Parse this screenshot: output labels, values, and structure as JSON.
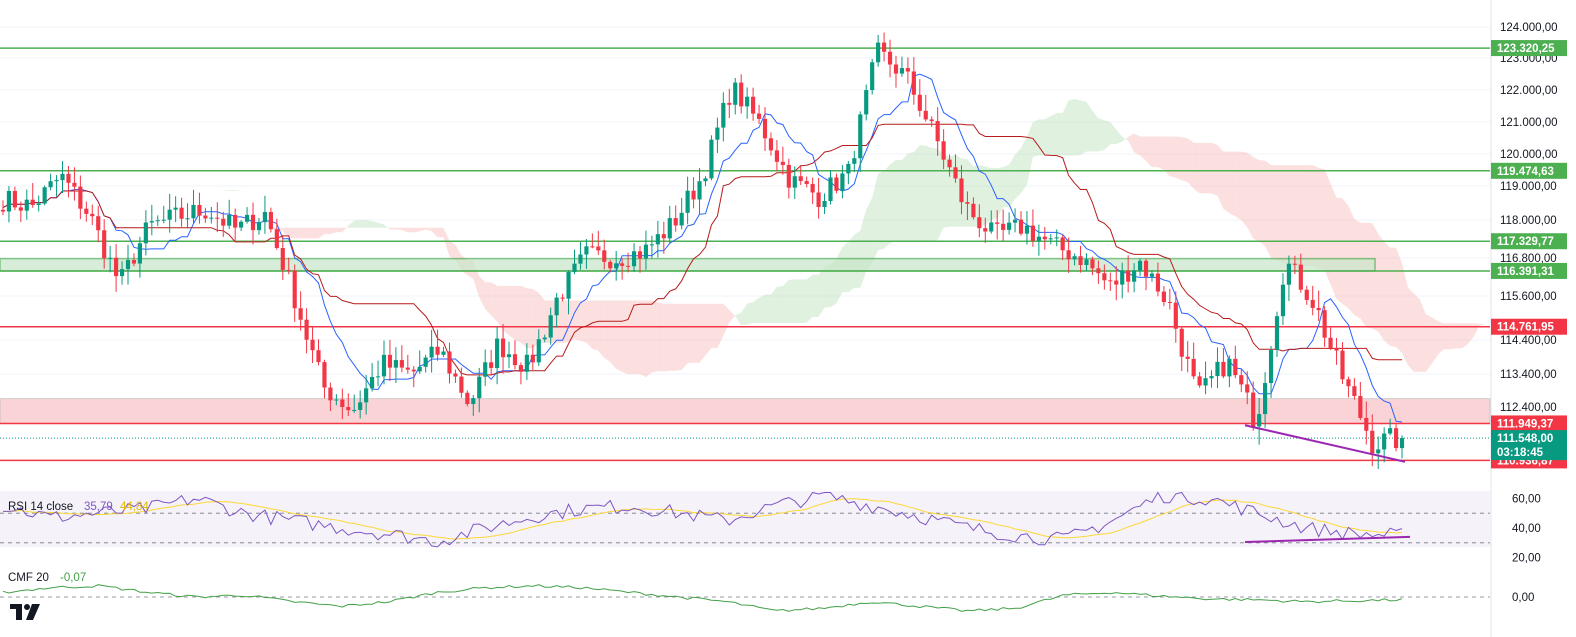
{
  "colors": {
    "up": "#089981",
    "down": "#f23645",
    "green_line": "#4caf50",
    "red_line": "#f23645",
    "tenkan": "#2962ff",
    "kijun": "#b71c1c",
    "cloud_bull": "#a5d6a7",
    "cloud_bear": "#f7a6a6",
    "rsi": "#7e57c2",
    "rsi_ma": "#fdd835",
    "cmf": "#43a047",
    "div": "#9c27b0"
  },
  "chart_data": [
    {
      "type": "candlestick",
      "title": "",
      "ylim": [
        110400,
        124600
      ],
      "y_ticks": [
        "124.000,00",
        "123.000,00",
        "122.000,00",
        "121.000,00",
        "120.000,00",
        "119.000,00",
        "118.000,00",
        "116.800,00",
        "115.600,00",
        "114.400,00",
        "113.400,00",
        "112.400,00"
      ],
      "y_tick_values": [
        124000,
        123000,
        122000,
        121000,
        120000,
        119000,
        118000,
        116800,
        115600,
        114400,
        113400,
        112400
      ],
      "levels": [
        {
          "label": "123.320,25",
          "value": 123320.25,
          "color": "green"
        },
        {
          "label": "119.474,63",
          "value": 119474.63,
          "color": "green"
        },
        {
          "label": "117.329,77",
          "value": 117329.77,
          "color": "green"
        },
        {
          "label": "116.391,31",
          "value": 116391.31,
          "color": "green"
        },
        {
          "label": "114.761,95",
          "value": 114761.95,
          "color": "red"
        },
        {
          "label": "111.949,37",
          "value": 111949.37,
          "color": "red"
        },
        {
          "label": "110.936,87",
          "value": 110936.87,
          "color": "red"
        }
      ],
      "last_price": {
        "label": "111.548,00",
        "value": 111548,
        "countdown": "03:18:45"
      },
      "zones": [
        {
          "type": "support",
          "from": 111949.37,
          "to": 112650
        },
        {
          "type": "resistance",
          "from": 116391.31,
          "to": 116780
        }
      ],
      "key_closes": [
        118600,
        118400,
        119300,
        118100,
        116000,
        117800,
        118100,
        118300,
        117700,
        118200,
        115600,
        113000,
        112300,
        113700,
        113400,
        114100,
        112500,
        114300,
        113600,
        115500,
        116900,
        116800,
        117000,
        117900,
        119300,
        122100,
        120900,
        119200,
        118700,
        119400,
        123200,
        122400,
        120500,
        118400,
        117500,
        117800,
        117200,
        116800,
        115900,
        116700,
        115400,
        112700,
        113800,
        112000,
        116700,
        115400,
        113200,
        111400,
        111548
      ],
      "divergence": {
        "from": 111900,
        "to": 110900
      }
    },
    {
      "type": "line",
      "title": "RSI 14 close",
      "legend_values": {
        "rsi": "35,79",
        "rsi_ma": "44,84"
      },
      "ylim": [
        15,
        65
      ],
      "y_ticks": [
        "60,00",
        "40,00",
        "20,00"
      ],
      "y_tick_values": [
        60,
        40,
        20
      ],
      "bands": [
        30,
        50
      ],
      "key_values": [
        55,
        47,
        50,
        53,
        60,
        50,
        45,
        40,
        36,
        31,
        40,
        48,
        53,
        55,
        50,
        45,
        55,
        62,
        55,
        48,
        40,
        35,
        32,
        45,
        62,
        60,
        50,
        40,
        36,
        35
      ],
      "divergence": {
        "from": 30.5,
        "to": 34
      }
    },
    {
      "type": "line",
      "title": "CMF 20",
      "legend_values": {
        "cmf": "-0,07"
      },
      "ylim": [
        -0.3,
        0.3
      ],
      "y_ticks": [
        "0,00"
      ],
      "y_tick_values": [
        0
      ],
      "key_values": [
        0.05,
        0.1,
        0.12,
        0.05,
        0,
        0.02,
        -0.05,
        -0.1,
        -0.05,
        0.05,
        0.1,
        0.12,
        0.1,
        0.05,
        0,
        -0.05,
        -0.15,
        -0.12,
        -0.05,
        -0.1,
        -0.15,
        -0.12,
        0.02,
        0.05,
        0.01,
        -0.02,
        -0.03,
        -0.05,
        -0.04,
        -0.03
      ]
    }
  ]
}
